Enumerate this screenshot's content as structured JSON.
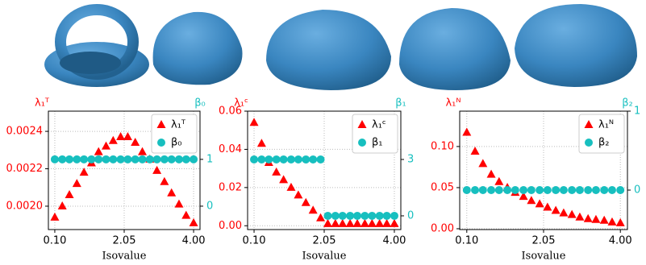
{
  "chart_data": [
    {
      "type": "scatter",
      "xlabel": "Isovalue",
      "ylabel": "λ₁ᵀ",
      "y2label": "β₀",
      "x": [
        0.1,
        0.31,
        0.51,
        0.72,
        0.92,
        1.13,
        1.33,
        1.54,
        1.74,
        1.95,
        2.15,
        2.36,
        2.56,
        2.77,
        2.97,
        3.18,
        3.38,
        3.59,
        3.79,
        4.0
      ],
      "series": [
        {
          "name": "λ₁ᵀ",
          "color": "#ff0000",
          "marker": "triangle",
          "values": [
            0.00194,
            0.002,
            0.00206,
            0.00212,
            0.00218,
            0.00223,
            0.00229,
            0.00232,
            0.00235,
            0.00237,
            0.00237,
            0.00234,
            0.00229,
            0.00225,
            0.00219,
            0.00213,
            0.00207,
            0.00201,
            0.00195,
            0.00191
          ]
        },
        {
          "name": "β₀",
          "color": "#17bfbf",
          "marker": "circle",
          "axis": "y2",
          "values": [
            1,
            1,
            1,
            1,
            1,
            1,
            1,
            1,
            1,
            1,
            1,
            1,
            1,
            1,
            1,
            1,
            1,
            1,
            1,
            1
          ]
        }
      ],
      "xlim": [
        -0.08,
        4.18
      ],
      "xticks": [
        {
          "value": 0.1,
          "label": "0.10"
        },
        2.05,
        {
          "value": 4.0,
          "label": "4.00"
        }
      ],
      "ylim": [
        0.001875,
        0.002508
      ],
      "yticks": [
        {
          "value": 0.002,
          "label": "0.0020"
        },
        0.0022,
        0.0024
      ],
      "y2lim": [
        -0.5,
        2.03
      ],
      "y2ticks": [
        0,
        1
      ],
      "grid": true,
      "legend": "upper right"
    },
    {
      "type": "scatter",
      "xlabel": "Isovalue",
      "ylabel": "λ₁ᶜ",
      "y2label": "β₁",
      "x": [
        0.1,
        0.31,
        0.51,
        0.72,
        0.92,
        1.13,
        1.33,
        1.54,
        1.74,
        1.95,
        2.15,
        2.36,
        2.56,
        2.77,
        2.97,
        3.18,
        3.38,
        3.59,
        3.79,
        4.0
      ],
      "series": [
        {
          "name": "λ₁ᶜ",
          "color": "#ff0000",
          "marker": "triangle",
          "values": [
            0.054,
            0.043,
            0.033,
            0.028,
            0.024,
            0.02,
            0.016,
            0.012,
            0.008,
            0.004,
            0.001,
            0.001,
            0.001,
            0.001,
            0.001,
            0.001,
            0.001,
            0.001,
            0.001,
            0.001
          ]
        },
        {
          "name": "β₁",
          "color": "#17bfbf",
          "marker": "circle",
          "axis": "y2",
          "values": [
            3,
            3,
            3,
            3,
            3,
            3,
            3,
            3,
            3,
            3,
            0,
            0,
            0,
            0,
            0,
            0,
            0,
            0,
            0,
            0
          ]
        }
      ],
      "xlim": [
        -0.08,
        4.18
      ],
      "xticks": [
        {
          "value": 0.1,
          "label": "0.10"
        },
        2.05,
        {
          "value": 4.0,
          "label": "4.00"
        }
      ],
      "ylim": [
        -0.002,
        0.06
      ],
      "yticks": [
        {
          "value": 0,
          "label": "0.00"
        },
        0.02,
        0.04,
        0.06
      ],
      "y2lim": [
        -0.73,
        5.57
      ],
      "y2ticks": [
        0,
        3
      ],
      "grid": true,
      "legend": "upper right"
    },
    {
      "type": "scatter",
      "xlabel": "Isovalue",
      "ylabel": "λ₁ᴺ",
      "y2label": "β₂",
      "x": [
        0.1,
        0.31,
        0.51,
        0.72,
        0.92,
        1.13,
        1.33,
        1.54,
        1.74,
        1.95,
        2.15,
        2.36,
        2.56,
        2.77,
        2.97,
        3.18,
        3.38,
        3.59,
        3.79,
        4.0
      ],
      "series": [
        {
          "name": "λ₁ᴺ",
          "color": "#ff0000",
          "marker": "triangle",
          "values": [
            0.117,
            0.094,
            0.079,
            0.066,
            0.057,
            0.05,
            0.044,
            0.039,
            0.034,
            0.03,
            0.026,
            0.022,
            0.019,
            0.017,
            0.014,
            0.012,
            0.011,
            0.01,
            0.008,
            0.007
          ]
        },
        {
          "name": "β₂",
          "color": "#17bfbf",
          "marker": "circle",
          "axis": "y2",
          "values": [
            0,
            0,
            0,
            0,
            0,
            0,
            0,
            0,
            0,
            0,
            0,
            0,
            0,
            0,
            0,
            0,
            0,
            0,
            0,
            0
          ]
        }
      ],
      "xlim": [
        -0.08,
        4.18
      ],
      "xticks": [
        {
          "value": 0.1,
          "label": "0.10"
        },
        2.05,
        {
          "value": 4.0,
          "label": "4.00"
        }
      ],
      "ylim": [
        -0.001,
        0.143
      ],
      "yticks": [
        {
          "value": 0,
          "label": "0.00"
        },
        0.05,
        {
          "value": 0.1,
          "label": "0.10"
        }
      ],
      "y2lim": [
        -0.5,
        1
      ],
      "y2ticks": [
        0,
        1
      ],
      "grid": true,
      "legend": "upper right"
    }
  ]
}
